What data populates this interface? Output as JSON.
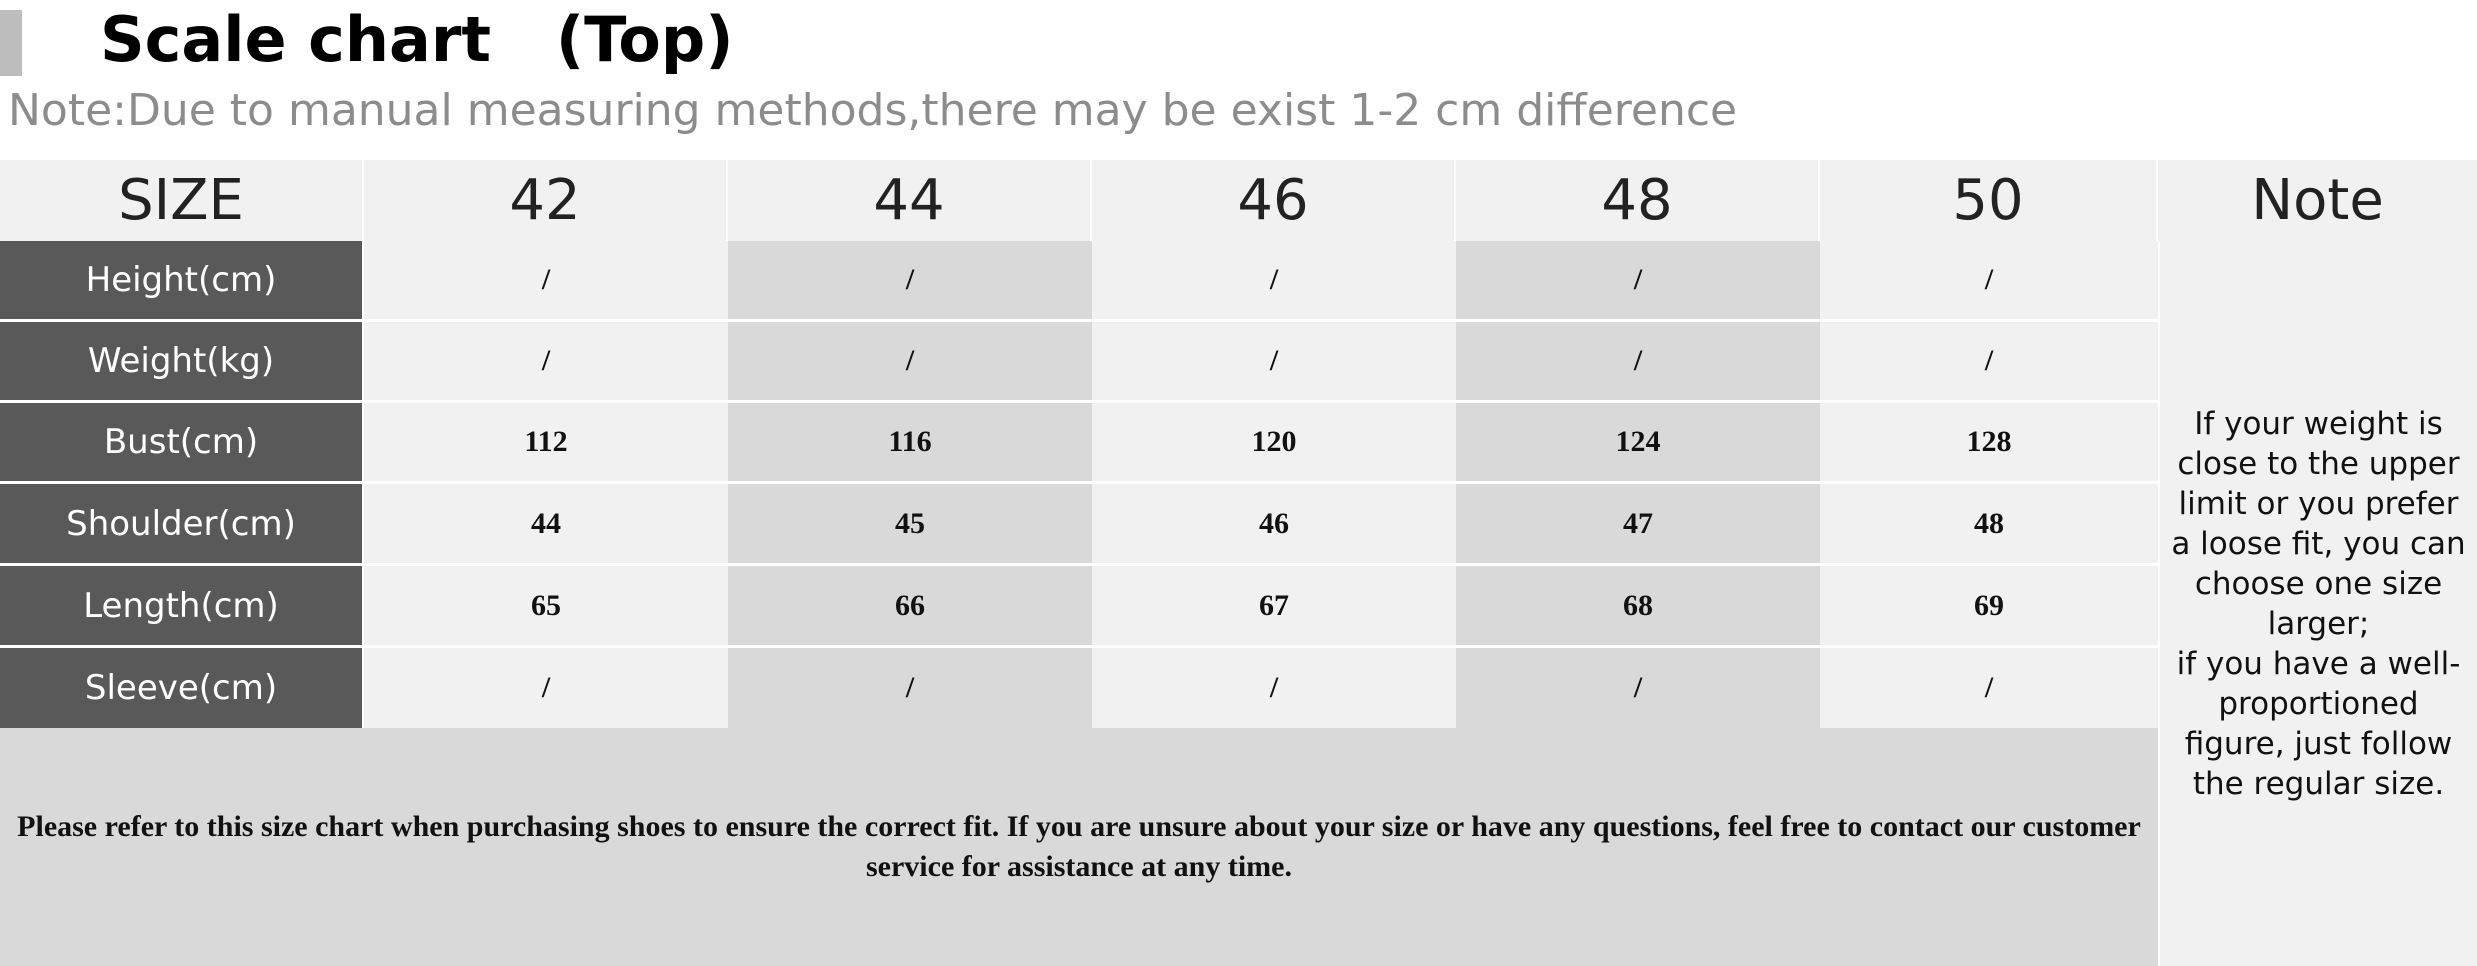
{
  "header": {
    "title": "Scale chart   (Top)",
    "note": "Note:Due to manual measuring methods,there may be exist 1-2 cm difference"
  },
  "table": {
    "size_label": "SIZE",
    "sizes": [
      "42",
      "44",
      "46",
      "48",
      "50"
    ],
    "note_label": "Note",
    "rows": [
      {
        "label": "Height(cm)",
        "values": [
          "/",
          "/",
          "/",
          "/",
          "/"
        ]
      },
      {
        "label": "Weight(kg)",
        "values": [
          "/",
          "/",
          "/",
          "/",
          "/"
        ]
      },
      {
        "label": "Bust(cm)",
        "values": [
          "112",
          "116",
          "120",
          "124",
          "128"
        ]
      },
      {
        "label": "Shoulder(cm)",
        "values": [
          "44",
          "45",
          "46",
          "47",
          "48"
        ]
      },
      {
        "label": "Length(cm)",
        "values": [
          "65",
          "66",
          "67",
          "68",
          "69"
        ]
      },
      {
        "label": "Sleeve(cm)",
        "values": [
          "/",
          "/",
          "/",
          "/",
          "/"
        ]
      }
    ],
    "note_text": "If your weight is close to the upper limit or you prefer a loose fit, you can choose one size larger;\nif you have a well-proportioned figure, just follow the regular size.",
    "footer_text": "Please refer to this size chart when purchasing shoes to ensure the correct fit. If you are unsure about your size or have any questions, feel free to contact our customer service for assistance at any time."
  },
  "colors": {
    "label_bg": "#595959",
    "cell_light": "#f1f1f1",
    "cell_dark": "#d9d9d9",
    "note_gray": "#8c8c8c",
    "title_bar": "#bdbdbd"
  }
}
